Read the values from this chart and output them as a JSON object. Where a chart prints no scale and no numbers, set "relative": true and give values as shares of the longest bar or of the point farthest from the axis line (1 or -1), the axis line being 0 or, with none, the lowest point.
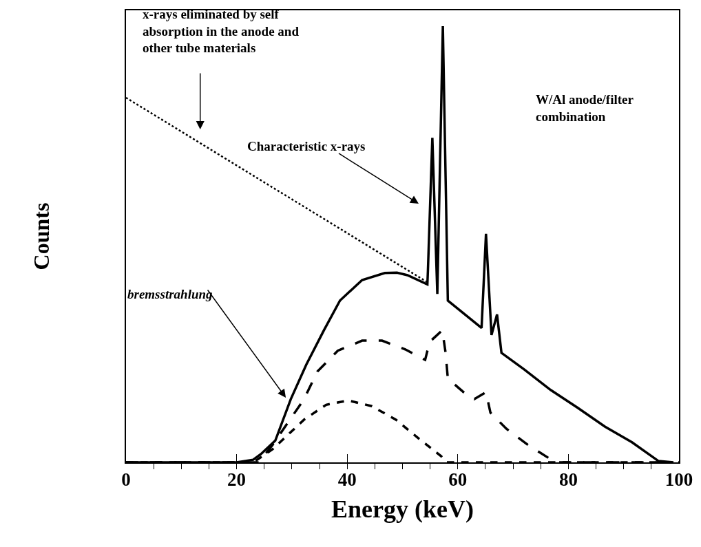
{
  "chart_data": {
    "type": "line",
    "relative": true,
    "xlabel": "Energy (keV)",
    "ylabel": "Counts",
    "xlim": [
      0,
      100
    ],
    "xticks": [
      0,
      20,
      40,
      60,
      80,
      100
    ],
    "marker": "none",
    "annotations": [
      "x-rays eliminated by self absorption in the anode and other tube materials",
      "Characteristic x-rays",
      "W/Al anode/filter combination",
      "bremsstrahlung"
    ],
    "series": [
      {
        "color": "#000000",
        "line_style": "dotted",
        "x": [
          0,
          54.5
        ],
        "values": [
          0.836,
          0.413
        ]
      },
      {
        "color": "#000000",
        "line_style": "solid",
        "x": [
          0,
          20,
          23,
          24.4,
          27,
          29.8,
          32.6,
          35.8,
          38.7,
          42.7,
          46.8,
          49,
          50.9,
          54.5,
          54.6,
          55.4,
          56.3,
          57.3,
          58.2,
          64.3,
          65.1,
          66.1,
          67.1,
          67.9,
          72,
          76.8,
          81.7,
          86.6,
          91.5,
          96.3,
          99
        ],
        "values": [
          0,
          0,
          0.006,
          0.019,
          0.05,
          0.145,
          0.224,
          0.303,
          0.371,
          0.418,
          0.434,
          0.435,
          0.429,
          0.408,
          0.44,
          0.744,
          0.386,
          1.0,
          0.371,
          0.308,
          0.524,
          0.292,
          0.339,
          0.251,
          0.213,
          0.166,
          0.125,
          0.082,
          0.046,
          0.003,
          0
        ]
      },
      {
        "color": "#000000",
        "line_style": "dashed",
        "x": [
          0,
          24,
          26.5,
          32.2,
          34.6,
          38.3,
          42.7,
          46.3,
          50.5,
          54.1,
          54.9,
          57.2,
          57.8,
          58.2,
          61.5,
          63,
          65.1,
          65.9,
          68.8,
          72.8,
          77.3,
          78,
          100
        ],
        "values": [
          0,
          0,
          0.04,
          0.145,
          0.208,
          0.256,
          0.279,
          0.279,
          0.259,
          0.235,
          0.276,
          0.303,
          0.251,
          0.192,
          0.156,
          0.145,
          0.161,
          0.114,
          0.077,
          0.039,
          0.003,
          0,
          0
        ]
      },
      {
        "color": "#000000",
        "line_style": "dashed",
        "x": [
          0,
          23,
          26.5,
          32.2,
          36.2,
          40.2,
          44.4,
          48.8,
          52.9,
          57,
          58,
          100
        ],
        "values": [
          0,
          0,
          0.03,
          0.098,
          0.132,
          0.142,
          0.129,
          0.098,
          0.055,
          0.014,
          0,
          0
        ]
      }
    ]
  }
}
